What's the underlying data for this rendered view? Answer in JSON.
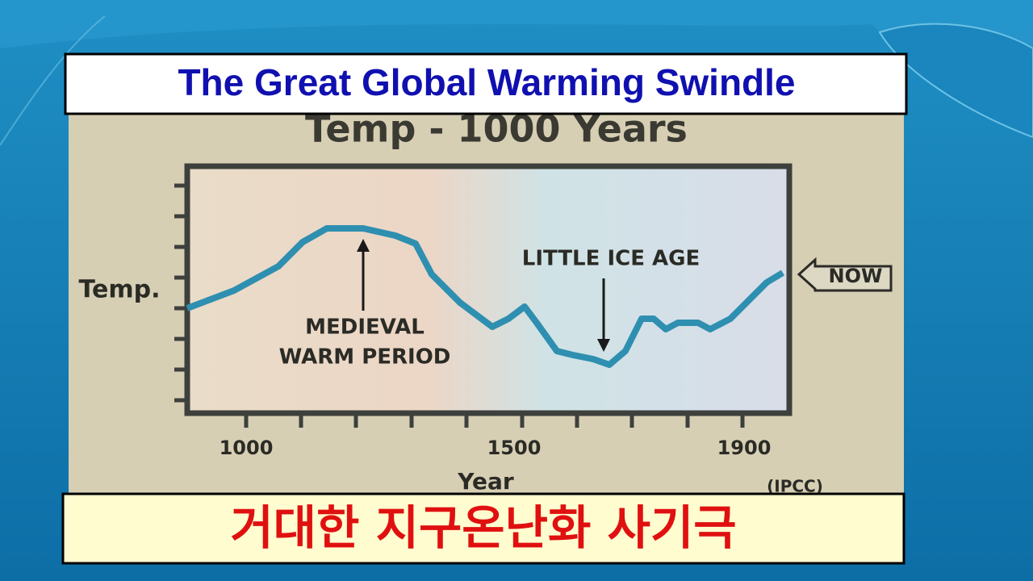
{
  "header": {
    "title": "The Great Global Warming Swindle"
  },
  "figure": {
    "title": "Temp - 1000 Years",
    "y_label": "Temp.",
    "x_label": "Year",
    "x_tick_labels": [
      "1000",
      "1500",
      "1900"
    ],
    "annotations": {
      "medieval": [
        "MEDIEVAL",
        "WARM PERIOD"
      ],
      "ice_age": "LITTLE ICE AGE",
      "now": "NOW"
    },
    "source": "(IPCC)"
  },
  "footer": {
    "subtitle": "거대한 지구온난화 사기극"
  }
}
